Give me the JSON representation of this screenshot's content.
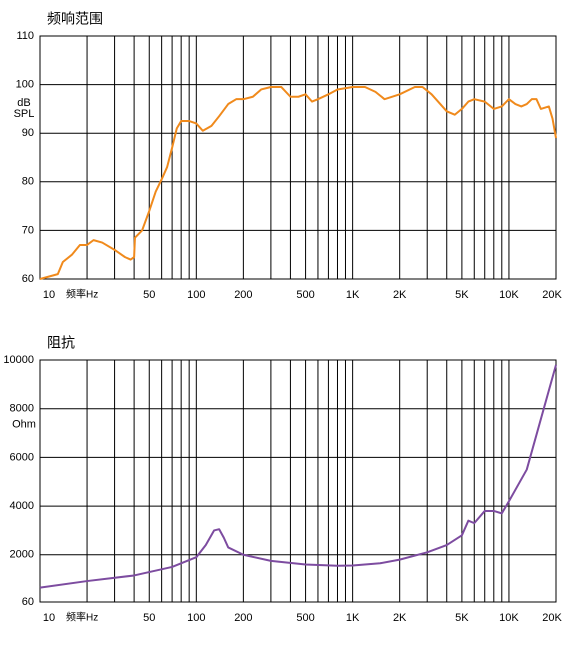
{
  "chart_data": [
    {
      "type": "line",
      "title": "频响范围",
      "xlabel": "频率Hz",
      "ylabel": [
        "dB",
        "SPL"
      ],
      "xscale": "log",
      "x": [
        10,
        13,
        14,
        16,
        18,
        20,
        22,
        25,
        30,
        35,
        38,
        40,
        40.5,
        45,
        50,
        55,
        60,
        65,
        70,
        75,
        80,
        90,
        100,
        110,
        125,
        140,
        160,
        180,
        200,
        230,
        260,
        300,
        350,
        400,
        450,
        500,
        550,
        600,
        700,
        800,
        1000,
        1200,
        1400,
        1600,
        2000,
        2500,
        2800,
        3200,
        4000,
        4500,
        5000,
        5500,
        6000,
        7000,
        8000,
        9000,
        10000,
        11000,
        12000,
        13000,
        14000,
        15000,
        16000,
        18000,
        19000,
        20000
      ],
      "series": [
        {
          "color": "#f08a1c",
          "values": [
            60,
            61,
            63.5,
            65,
            67,
            67,
            68,
            67.5,
            66,
            64.5,
            64,
            64.5,
            68.5,
            70,
            74,
            78,
            80.5,
            83,
            87,
            91,
            92.5,
            92.5,
            92,
            90.5,
            91.5,
            93.5,
            96,
            97,
            97,
            97.5,
            99,
            99.5,
            99.5,
            97.5,
            97.5,
            98,
            96.5,
            97,
            98,
            99,
            99.5,
            99.5,
            98.5,
            97,
            98,
            99.5,
            99.5,
            98,
            94.5,
            93.8,
            95,
            96.5,
            97,
            96.5,
            95,
            95.5,
            97,
            96,
            95.5,
            96,
            97,
            97,
            95,
            95.5,
            93,
            89
          ]
        }
      ],
      "xlim": [
        10,
        20000
      ],
      "ylim": [
        60,
        110
      ],
      "yticks": [
        60,
        70,
        80,
        90,
        100,
        110
      ],
      "xticks": [
        10,
        50,
        100,
        200,
        500,
        {
          "value": 1000,
          "label": "1K"
        },
        {
          "value": 2000,
          "label": "2K"
        },
        {
          "value": 5000,
          "label": "5K"
        },
        {
          "value": 10000,
          "label": "10K"
        },
        {
          "value": 20000,
          "label": "20K"
        }
      ],
      "xgrid": [
        20,
        30,
        40,
        50,
        60,
        70,
        80,
        90,
        100,
        200,
        300,
        400,
        500,
        600,
        700,
        800,
        900,
        1000,
        2000,
        3000,
        4000,
        5000,
        6000,
        7000,
        8000,
        9000,
        10000
      ],
      "grid": true
    },
    {
      "type": "line",
      "title": "阻抗",
      "xlabel": "频率Hz",
      "ylabel": [
        "Ohm"
      ],
      "xscale": "log",
      "x": [
        10,
        20,
        40,
        70,
        100,
        115,
        130,
        140,
        150,
        160,
        200,
        300,
        500,
        800,
        1000,
        1500,
        2000,
        3000,
        4000,
        5000,
        5500,
        6000,
        7000,
        8000,
        9000,
        10000,
        13000,
        20000
      ],
      "series": [
        {
          "color": "#7d4ca0",
          "values": [
            650,
            920,
            1150,
            1500,
            1900,
            2400,
            3000,
            3050,
            2700,
            2300,
            2000,
            1750,
            1600,
            1550,
            1560,
            1650,
            1800,
            2100,
            2400,
            2800,
            3400,
            3300,
            3800,
            3800,
            3700,
            4200,
            5500,
            9800
          ]
        }
      ],
      "xlim": [
        10,
        20000
      ],
      "ylim": [
        60,
        10000
      ],
      "yticks": [
        60,
        2000,
        4000,
        6000,
        8000,
        10000
      ],
      "xticks": [
        10,
        50,
        100,
        200,
        500,
        {
          "value": 1000,
          "label": "1K"
        },
        {
          "value": 2000,
          "label": "2K"
        },
        {
          "value": 5000,
          "label": "5K"
        },
        {
          "value": 10000,
          "label": "10K"
        },
        {
          "value": 20000,
          "label": "20K"
        }
      ],
      "xgrid": [
        20,
        30,
        40,
        50,
        60,
        70,
        80,
        90,
        100,
        200,
        300,
        400,
        500,
        600,
        700,
        800,
        900,
        1000,
        2000,
        3000,
        4000,
        5000,
        6000,
        7000,
        8000,
        9000,
        10000
      ],
      "grid": true
    }
  ]
}
